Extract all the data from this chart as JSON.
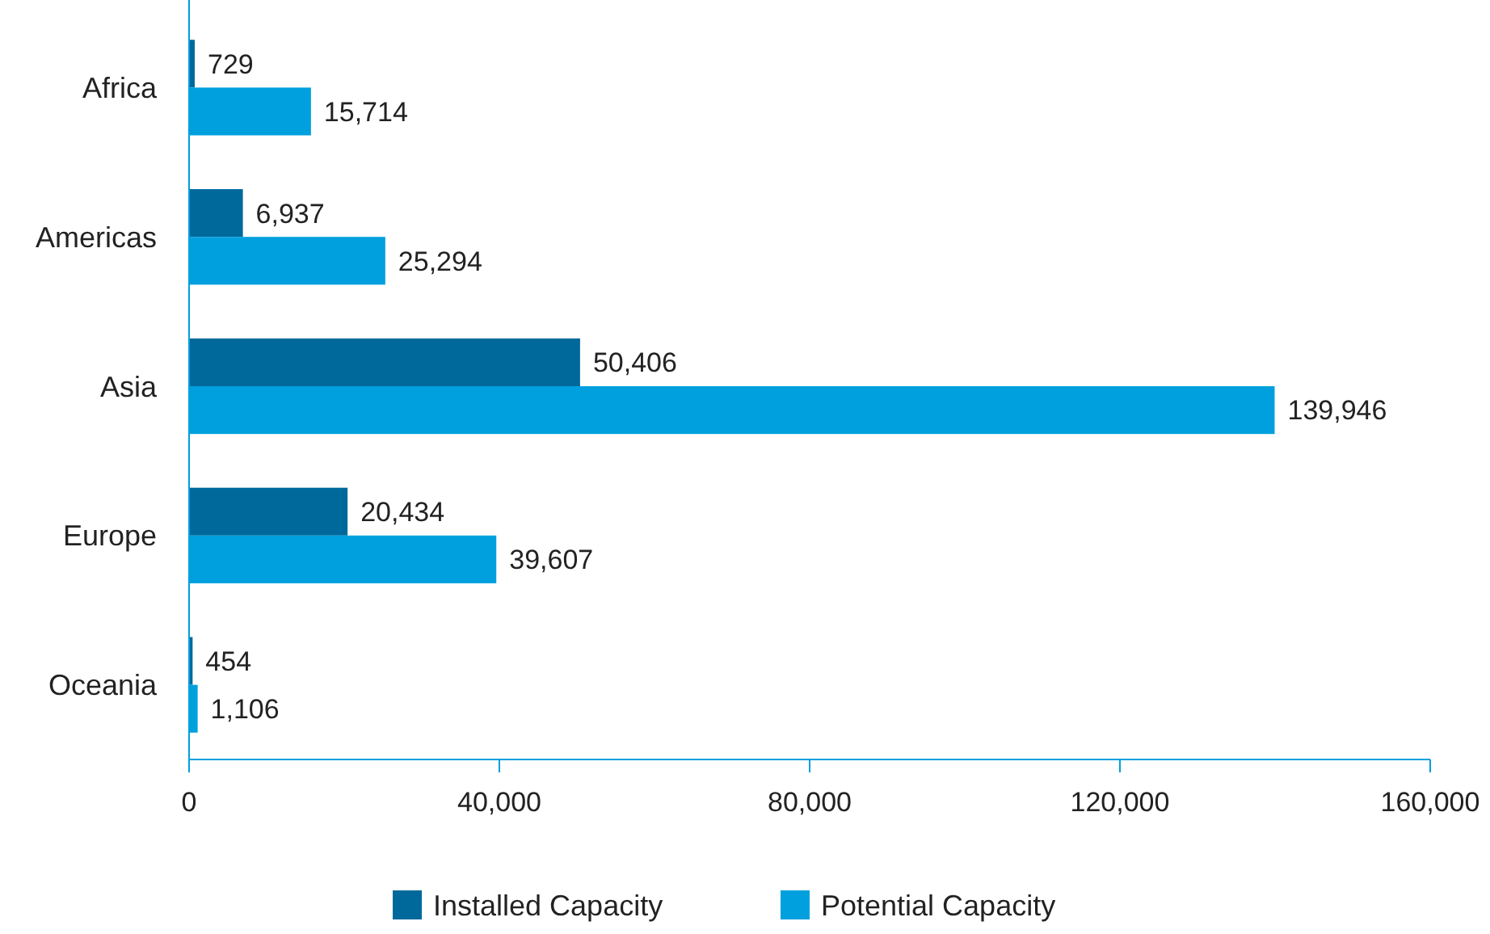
{
  "chart_data": {
    "type": "bar",
    "orientation": "horizontal",
    "categories": [
      "Africa",
      "Americas",
      "Asia",
      "Europe",
      "Oceania"
    ],
    "series": [
      {
        "name": "Installed Capacity",
        "color": "#00699b",
        "values": [
          729,
          6937,
          50406,
          20434,
          454
        ],
        "value_labels": [
          "729",
          "6,937",
          "50,406",
          "20,434",
          "454"
        ]
      },
      {
        "name": "Potential Capacity",
        "color": "#00a0de",
        "values": [
          15714,
          25294,
          139946,
          39607,
          1106
        ],
        "value_labels": [
          "15,714",
          "25,294",
          "139,946",
          "39,607",
          "1,106"
        ]
      }
    ],
    "xlim": [
      0,
      160000
    ],
    "xticks": [
      {
        "value": 0,
        "label": "0"
      },
      {
        "value": 40000,
        "label": "40,000"
      },
      {
        "value": 80000,
        "label": "80,000"
      },
      {
        "value": 120000,
        "label": "120,000"
      },
      {
        "value": 160000,
        "label": "160,000"
      }
    ],
    "grid": false,
    "legend": "bottom"
  }
}
